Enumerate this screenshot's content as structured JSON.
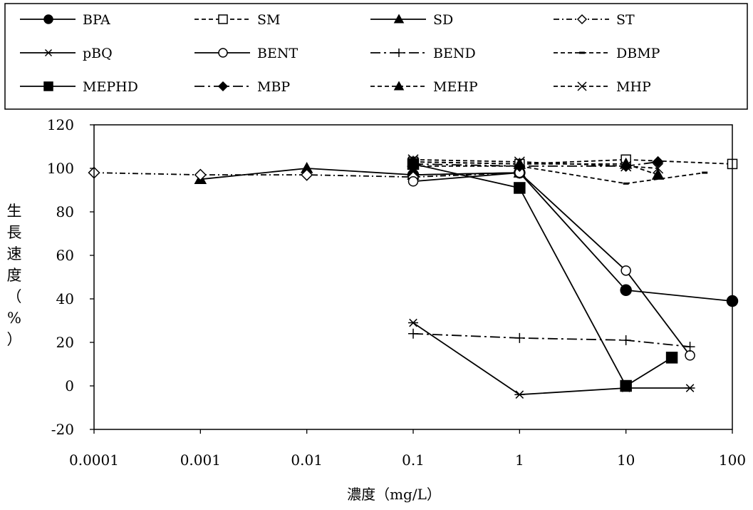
{
  "chart_data": {
    "type": "line",
    "title": "",
    "xlabel": "濃度（mg/L）",
    "ylabel": "生長速度（%）",
    "xscale": "log",
    "xlim": [
      0.0001,
      100
    ],
    "ylim": [
      -20,
      120
    ],
    "x_ticks": [
      "0.0001",
      "0.001",
      "0.01",
      "0.1",
      "1",
      "10",
      "100"
    ],
    "y_ticks": [
      "-20",
      "0",
      "20",
      "40",
      "60",
      "80",
      "100",
      "120"
    ],
    "grid": false,
    "legend_position": "top",
    "series": [
      {
        "name": "BPA",
        "line": "solid",
        "marker": "circle",
        "fill": true,
        "x": [
          0.1,
          1,
          10,
          100
        ],
        "y": [
          97,
          98,
          44,
          39
        ]
      },
      {
        "name": "SM",
        "line": "dashed",
        "marker": "square",
        "fill": false,
        "x": [
          0.1,
          1,
          10,
          100
        ],
        "y": [
          103,
          102,
          104,
          102
        ]
      },
      {
        "name": "SD",
        "line": "solid",
        "marker": "triangle",
        "fill": true,
        "x": [
          0.001,
          0.01,
          0.1,
          1
        ],
        "y": [
          95,
          100,
          97,
          98
        ]
      },
      {
        "name": "ST",
        "line": "dashdot",
        "marker": "diamond",
        "fill": false,
        "x": [
          0.0001,
          0.001,
          0.01,
          0.1,
          1
        ],
        "y": [
          98,
          97,
          97,
          96,
          98
        ]
      },
      {
        "name": "pBQ",
        "line": "solid",
        "marker": "star",
        "fill": false,
        "x": [
          0.1,
          1,
          10,
          40
        ],
        "y": [
          29,
          -4,
          -1,
          -1
        ]
      },
      {
        "name": "BENT",
        "line": "solid",
        "marker": "circle",
        "fill": false,
        "x": [
          0.1,
          1,
          10,
          40
        ],
        "y": [
          94,
          98,
          53,
          14
        ]
      },
      {
        "name": "BEND",
        "line": "longdashdot",
        "marker": "plus",
        "fill": false,
        "x": [
          0.1,
          1,
          10,
          40
        ],
        "y": [
          24,
          22,
          21,
          18
        ]
      },
      {
        "name": "DBMP",
        "line": "dashed",
        "marker": "dash",
        "fill": true,
        "x": [
          0.1,
          1,
          10,
          55
        ],
        "y": [
          101,
          101,
          93,
          98
        ]
      },
      {
        "name": "MEPHD",
        "line": "solid",
        "marker": "square",
        "fill": true,
        "x": [
          0.1,
          1,
          10,
          27
        ],
        "y": [
          102,
          91,
          0,
          13
        ]
      },
      {
        "name": "MBP",
        "line": "longdashdot",
        "marker": "diamond",
        "fill": true,
        "x": [
          0.1,
          1,
          10,
          20
        ],
        "y": [
          102,
          101,
          101,
          103
        ]
      },
      {
        "name": "MEHP",
        "line": "dashed",
        "marker": "triangle",
        "fill": true,
        "x": [
          0.1,
          1,
          10,
          20
        ],
        "y": [
          103,
          102,
          102,
          97
        ]
      },
      {
        "name": "MHP",
        "line": "dashed",
        "marker": "cross",
        "fill": false,
        "x": [
          0.1,
          1,
          10,
          20
        ],
        "y": [
          104,
          103,
          101,
          100
        ]
      }
    ]
  }
}
